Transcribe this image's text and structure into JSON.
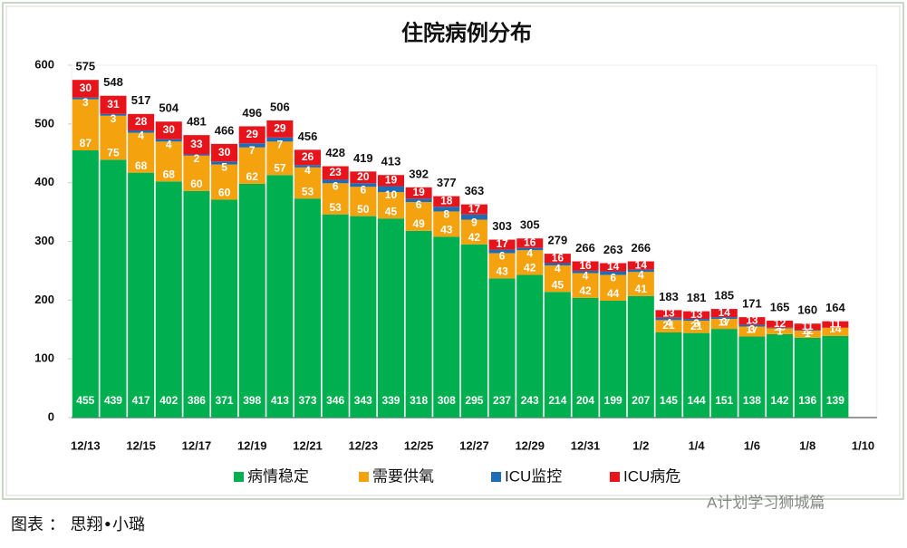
{
  "chart_data": {
    "type": "stacked-bar",
    "title": "住院病例分布",
    "categories": [
      "12/13",
      null,
      "12/15",
      null,
      "12/17",
      null,
      "12/19",
      null,
      "12/21",
      null,
      "12/23",
      null,
      "12/25",
      null,
      "12/27",
      null,
      "12/29",
      null,
      "12/31",
      null,
      "1/2",
      null,
      "1/4",
      null,
      "1/6",
      null,
      "1/8",
      null,
      "1/10"
    ],
    "series": [
      {
        "name": "病情稳定",
        "color": "#00b050",
        "values": [
          455,
          439,
          417,
          402,
          386,
          371,
          398,
          413,
          373,
          346,
          343,
          339,
          318,
          308,
          295,
          237,
          243,
          214,
          204,
          199,
          207,
          145,
          144,
          151,
          138,
          142,
          136,
          139,
          null
        ]
      },
      {
        "name": "需要供氧",
        "color": "#f5a20f",
        "values": [
          87,
          75,
          68,
          68,
          60,
          60,
          62,
          57,
          53,
          53,
          50,
          45,
          49,
          43,
          42,
          43,
          42,
          45,
          42,
          44,
          41,
          21,
          21,
          17,
          17,
          10,
          12,
          14,
          null
        ]
      },
      {
        "name": "ICU监控",
        "color": "#1f6cb4",
        "values": [
          3,
          3,
          4,
          4,
          2,
          5,
          7,
          7,
          4,
          6,
          6,
          10,
          6,
          8,
          9,
          6,
          4,
          4,
          4,
          6,
          4,
          4,
          3,
          3,
          3,
          1,
          1,
          null,
          null
        ]
      },
      {
        "name": "ICU病危",
        "color": "#e8141b",
        "values": [
          30,
          31,
          28,
          30,
          33,
          30,
          29,
          29,
          26,
          23,
          20,
          19,
          19,
          18,
          17,
          17,
          16,
          16,
          16,
          14,
          14,
          13,
          13,
          14,
          13,
          12,
          11,
          11,
          null
        ]
      }
    ],
    "totals": [
      575,
      548,
      517,
      504,
      481,
      466,
      496,
      506,
      456,
      428,
      419,
      413,
      392,
      377,
      363,
      303,
      305,
      279,
      266,
      263,
      266,
      183,
      181,
      185,
      171,
      165,
      160,
      164,
      null
    ],
    "ylim": [
      0,
      600
    ],
    "yticks": [
      0,
      100,
      200,
      300,
      400,
      500,
      600
    ],
    "grid": false,
    "legend": "bottom",
    "watermark": "A计划学习狮城篇",
    "source": "图表 ： 思翔•小璐"
  }
}
